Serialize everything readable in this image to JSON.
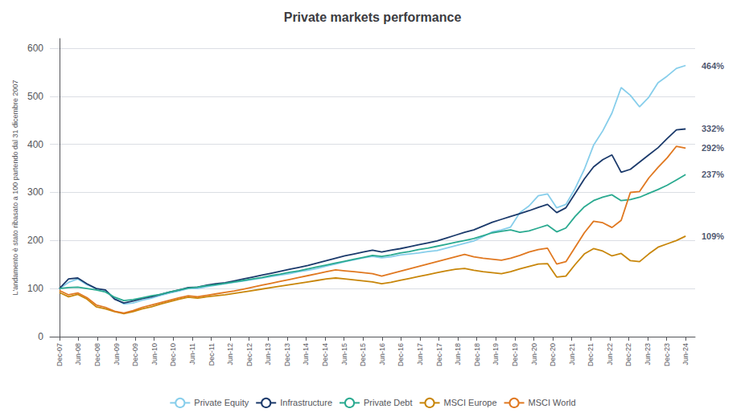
{
  "chart_data": {
    "type": "line",
    "title": "Private markets performance",
    "ylabel": "L'andamento è stato ribasato a 100 partendo dal 31 dicembre 2007",
    "x": [
      0,
      0.485294,
      0.970588,
      1.455882,
      1.941176,
      2.426471,
      2.911765,
      3.397059,
      3.882353,
      4.367647,
      4.852941,
      5.338235,
      5.823529,
      6.308824,
      6.794118,
      7.279412,
      7.764706,
      8.25,
      8.735294,
      9.220588,
      9.705882,
      10.191176,
      10.676471,
      11.161765,
      11.647059,
      12.132353,
      12.617647,
      13.102941,
      13.588235,
      14.073529,
      14.558824,
      15.044118,
      15.529412,
      16.014706,
      16.5,
      16.985294,
      17.470588,
      17.955882,
      18.441176,
      18.926471,
      19.411765,
      19.897059,
      20.382353,
      20.867647,
      21.352941,
      21.838235,
      22.323529,
      22.808824,
      23.294118,
      23.779412,
      24.264706,
      24.75,
      25.235294,
      25.720588,
      26.205882,
      26.691176,
      27.176471,
      27.661765,
      28.147059,
      28.632353,
      29.117647,
      29.602941,
      30.088235,
      30.573529,
      31.058824,
      31.544118,
      32.029412,
      32.514706,
      33
    ],
    "xlim": [
      -0.5,
      33.5
    ],
    "xticks": [
      {
        "value": 0,
        "label": "Dec-07"
      },
      {
        "value": 1,
        "label": "Jun-08"
      },
      {
        "value": 2,
        "label": "Dec-08"
      },
      {
        "value": 3,
        "label": "Jun-09"
      },
      {
        "value": 4,
        "label": "Dec-09"
      },
      {
        "value": 5,
        "label": "Jun-10"
      },
      {
        "value": 6,
        "label": "Dec-10"
      },
      {
        "value": 7,
        "label": "Jun-11"
      },
      {
        "value": 8,
        "label": "Dec-11"
      },
      {
        "value": 9,
        "label": "Jun-12"
      },
      {
        "value": 10,
        "label": "Dec-12"
      },
      {
        "value": 11,
        "label": "Jun-13"
      },
      {
        "value": 12,
        "label": "Dec-13"
      },
      {
        "value": 13,
        "label": "Jun-14"
      },
      {
        "value": 14,
        "label": "Dec-14"
      },
      {
        "value": 15,
        "label": "Jun-15"
      },
      {
        "value": 16,
        "label": "Dec-15"
      },
      {
        "value": 17,
        "label": "Jun-16"
      },
      {
        "value": 18,
        "label": "Dec-16"
      },
      {
        "value": 19,
        "label": "Jun-17"
      },
      {
        "value": 20,
        "label": "Dec-17"
      },
      {
        "value": 21,
        "label": "Jun-18"
      },
      {
        "value": 22,
        "label": "Dec-18"
      },
      {
        "value": 23,
        "label": "Jun-19"
      },
      {
        "value": 24,
        "label": "Dec-19"
      },
      {
        "value": 25,
        "label": "Jun-20"
      },
      {
        "value": 26,
        "label": "Dec-20"
      },
      {
        "value": 27,
        "label": "Jun-21"
      },
      {
        "value": 28,
        "label": "Dec-21"
      },
      {
        "value": 29,
        "label": "Jun-22"
      },
      {
        "value": 30,
        "label": "Dec-22"
      },
      {
        "value": 31,
        "label": "Jun-23"
      },
      {
        "value": 32,
        "label": "Dec-23"
      },
      {
        "value": 33,
        "label": "Jun-24"
      }
    ],
    "ylim": [
      0,
      620
    ],
    "yticks": [
      0,
      100,
      200,
      300,
      400,
      500,
      600
    ],
    "grid": true,
    "legend": "bottom",
    "series": [
      {
        "name": "Private Equity",
        "color": "#87CEEB",
        "values": [
          100,
          113,
          120,
          108,
          100,
          96,
          80,
          68,
          70,
          76,
          80,
          86,
          91,
          95,
          100,
          100,
          104,
          107,
          110,
          113,
          116,
          119,
          122,
          125,
          128,
          131,
          135,
          138,
          142,
          147,
          151,
          156,
          160,
          164,
          167,
          164,
          166,
          170,
          172,
          174,
          177,
          179,
          184,
          189,
          194,
          199,
          208,
          218,
          222,
          228,
          258,
          272,
          293,
          297,
          268,
          275,
          308,
          348,
          398,
          428,
          465,
          518,
          502,
          478,
          498,
          528,
          542,
          558,
          564
        ]
      },
      {
        "name": "Infrastructure",
        "color": "#1b3a6b",
        "values": [
          100,
          120,
          122,
          110,
          100,
          97,
          78,
          70,
          74,
          79,
          83,
          88,
          93,
          97,
          102,
          103,
          107,
          110,
          112,
          116,
          120,
          124,
          128,
          132,
          136,
          140,
          144,
          148,
          153,
          158,
          163,
          168,
          172,
          176,
          180,
          176,
          180,
          183,
          187,
          191,
          195,
          199,
          205,
          211,
          217,
          222,
          230,
          238,
          244,
          250,
          256,
          262,
          269,
          275,
          258,
          268,
          298,
          328,
          353,
          368,
          378,
          342,
          348,
          363,
          378,
          393,
          412,
          430,
          432
        ]
      },
      {
        "name": "Private Debt",
        "color": "#2aaa90",
        "values": [
          100,
          102,
          103,
          100,
          97,
          93,
          82,
          75,
          77,
          81,
          85,
          88,
          93,
          97,
          101,
          103,
          106,
          108,
          111,
          114,
          117,
          120,
          123,
          127,
          130,
          134,
          137,
          141,
          145,
          149,
          153,
          157,
          161,
          165,
          169,
          167,
          170,
          174,
          177,
          181,
          184,
          188,
          192,
          196,
          200,
          204,
          210,
          216,
          219,
          222,
          217,
          220,
          226,
          232,
          218,
          226,
          250,
          270,
          283,
          290,
          295,
          283,
          285,
          290,
          298,
          306,
          315,
          326,
          337
        ]
      },
      {
        "name": "MSCI Europe",
        "color": "#c8860a",
        "values": [
          92,
          83,
          88,
          78,
          62,
          58,
          52,
          48,
          52,
          58,
          62,
          68,
          73,
          78,
          82,
          80,
          83,
          85,
          87,
          90,
          93,
          96,
          99,
          102,
          105,
          108,
          111,
          114,
          117,
          120,
          122,
          120,
          118,
          116,
          114,
          110,
          113,
          117,
          121,
          125,
          129,
          133,
          137,
          140,
          142,
          138,
          135,
          133,
          131,
          135,
          141,
          146,
          151,
          152,
          124,
          126,
          150,
          172,
          183,
          178,
          168,
          173,
          158,
          156,
          172,
          186,
          193,
          200,
          209
        ]
      },
      {
        "name": "MSCI World",
        "color": "#e07820",
        "values": [
          96,
          87,
          91,
          81,
          66,
          61,
          53,
          49,
          54,
          61,
          66,
          71,
          76,
          81,
          85,
          83,
          86,
          89,
          92,
          95,
          99,
          103,
          107,
          111,
          115,
          119,
          123,
          127,
          131,
          135,
          139,
          137,
          135,
          133,
          131,
          126,
          131,
          136,
          141,
          146,
          151,
          156,
          161,
          166,
          171,
          166,
          163,
          161,
          159,
          163,
          169,
          176,
          181,
          184,
          151,
          156,
          186,
          216,
          240,
          237,
          227,
          242,
          300,
          302,
          330,
          352,
          372,
          396,
          392
        ]
      }
    ],
    "annotations": [
      {
        "text": "464%",
        "x": 33.5,
        "y": 564
      },
      {
        "text": "332%",
        "x": 33.5,
        "y": 432
      },
      {
        "text": "292%",
        "x": 33.5,
        "y": 392
      },
      {
        "text": "237%",
        "x": 33.5,
        "y": 337
      },
      {
        "text": "109%",
        "x": 33.5,
        "y": 209
      }
    ]
  }
}
